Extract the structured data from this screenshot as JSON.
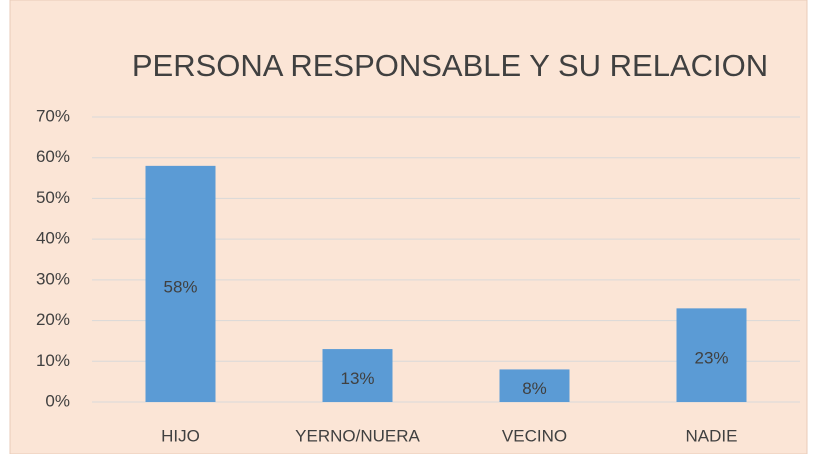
{
  "chart_data": {
    "type": "bar",
    "title": "PERSONA RESPONSABLE Y SU RELACION",
    "categories": [
      "HIJO",
      "YERNO/NUERA",
      "VECINO",
      "NADIE"
    ],
    "values": [
      58,
      13,
      8,
      23
    ],
    "value_labels": [
      "58%",
      "13%",
      "8%",
      "23%"
    ],
    "color": "#5b9bd5",
    "ylim": [
      0,
      70
    ],
    "yticks": [
      {
        "value": 0,
        "label": "0%"
      },
      {
        "value": 10,
        "label": "10%"
      },
      {
        "value": 20,
        "label": "20%"
      },
      {
        "value": 30,
        "label": "30%"
      },
      {
        "value": 40,
        "label": "40%"
      },
      {
        "value": 50,
        "label": "50%"
      },
      {
        "value": 60,
        "label": "60%"
      },
      {
        "value": 70,
        "label": "70%"
      }
    ],
    "grid": true
  }
}
